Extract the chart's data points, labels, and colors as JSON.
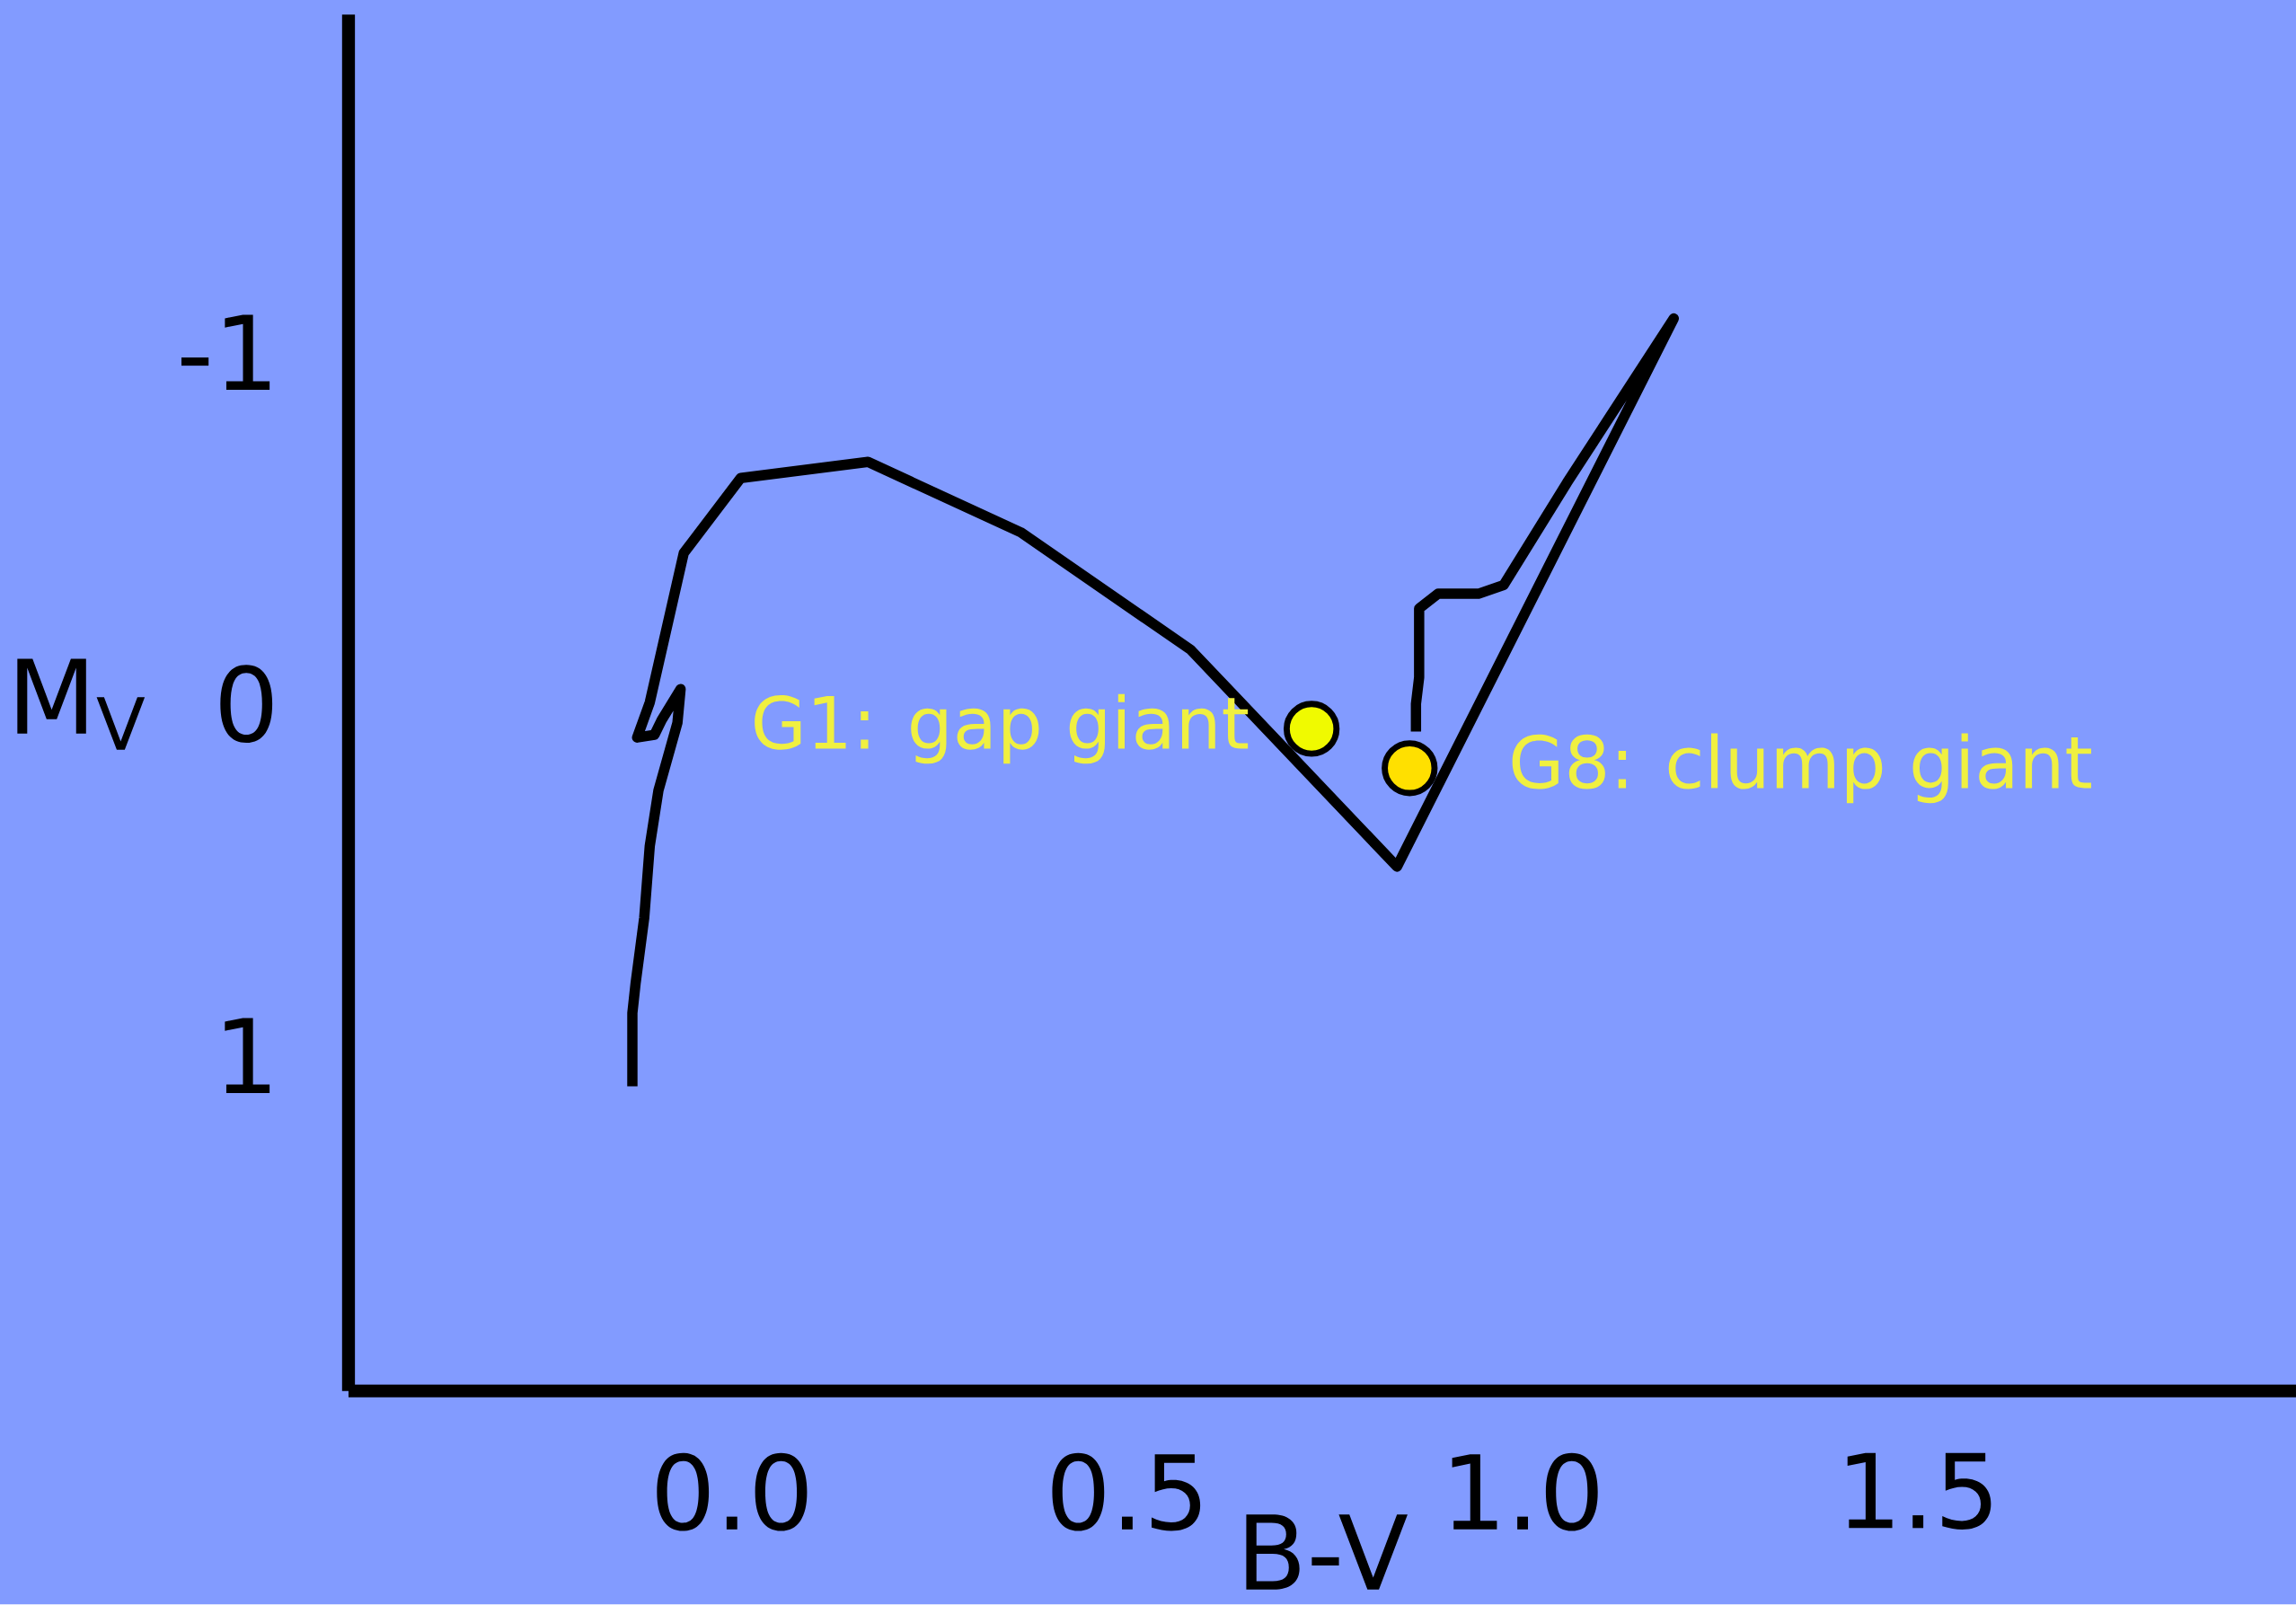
{
  "chart_data": {
    "type": "line",
    "xlabel": "B-V",
    "ylabel": "M$_{V}$",
    "xlim": [
      -0.485,
      1.978
    ],
    "ylim": [
      1.954,
      -1.96
    ],
    "xticks": [
      {
        "value": 0,
        "label": "0.0"
      },
      {
        "value": 0.5,
        "label": "0.5"
      },
      {
        "value": 1,
        "label": "1.0"
      },
      {
        "value": 1.5,
        "label": "1.5"
      }
    ],
    "yticks": [
      -1,
      0,
      1
    ],
    "grid": false,
    "series": [
      {
        "color": "#000000",
        "marker": "none",
        "line_style": "solid",
        "x": [
          -0.126,
          -0.126,
          -0.122,
          -0.111,
          -0.104,
          -0.093,
          -0.069,
          -0.065,
          -0.089,
          -0.098,
          -0.12,
          -0.104,
          -0.061,
          0.011,
          0.172,
          0.365,
          0.58,
          0.841,
          1.191,
          1.056,
          0.976,
          0.944,
          0.893,
          0.869,
          0.869,
          0.865,
          0.865
        ],
        "values": [
          1.088,
          0.879,
          0.796,
          0.608,
          0.404,
          0.246,
          0.054,
          -0.042,
          0.046,
          0.088,
          0.096,
          -0.004,
          -0.429,
          -0.642,
          -0.688,
          -0.488,
          -0.154,
          0.463,
          -1.096,
          -0.629,
          -0.338,
          -0.313,
          -0.313,
          -0.271,
          -0.075,
          0.0,
          0.079
        ]
      },
      {
        "type": "scatter",
        "color": "#f0fa00",
        "marker": "circle",
        "x": [
          0.733
        ],
        "values": [
          0.071
        ]
      },
      {
        "type": "scatter",
        "color": "#ffe000",
        "marker": "circle",
        "x": [
          0.857
        ],
        "values": [
          0.183
        ]
      }
    ],
    "annotations": [
      {
        "text": "G1: gap giant",
        "x": 0.733,
        "y": 0.071
      },
      {
        "text": "G8: clump giant",
        "x": 0.857,
        "y": 0.183
      }
    ]
  }
}
